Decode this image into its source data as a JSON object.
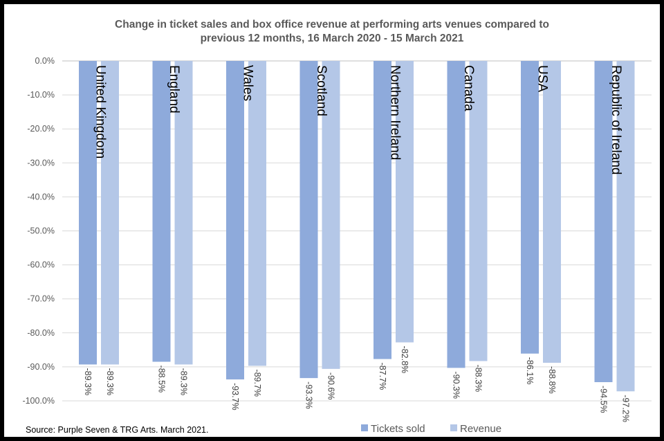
{
  "chart_data": {
    "type": "bar",
    "title": "Change in ticket sales and box office revenue at performing arts venues compared to previous 12 months, 16 March 2020 - 15 March 2021",
    "title_lines": [
      "Change in ticket sales and box office revenue at performing arts venues compared to",
      "previous 12 months, 16 March 2020 - 15 March 2021"
    ],
    "categories": [
      "United Kingdom",
      "England",
      "Wales",
      "Scotland",
      "Northern Ireland",
      "Canada",
      "USA",
      "Republic of Ireland"
    ],
    "series": [
      {
        "name": "Tickets sold",
        "color": "#8eaadb",
        "values": [
          -89.3,
          -88.5,
          -93.7,
          -93.3,
          -87.7,
          -90.3,
          -86.1,
          -94.5
        ]
      },
      {
        "name": "Revenue",
        "color": "#b4c7e7",
        "values": [
          -89.3,
          -89.3,
          -89.7,
          -90.6,
          -82.8,
          -88.3,
          -88.8,
          -97.2
        ]
      }
    ],
    "ylim": [
      -100,
      0
    ],
    "yticks": [
      0,
      -10,
      -20,
      -30,
      -40,
      -50,
      -60,
      -70,
      -80,
      -90,
      -100
    ],
    "ytick_labels": [
      "0.0%",
      "-10.0%",
      "-20.0%",
      "-30.0%",
      "-40.0%",
      "-50.0%",
      "-60.0%",
      "-70.0%",
      "-80.0%",
      "-90.0%",
      "-100.0%"
    ],
    "data_labels": [
      [
        "-89.3%",
        "-88.5%",
        "-93.7%",
        "-93.3%",
        "-87.7%",
        "-90.3%",
        "-86.1%",
        "-94.5%"
      ],
      [
        "-89.3%",
        "-89.3%",
        "-89.7%",
        "-90.6%",
        "-82.8%",
        "-88.3%",
        "-88.8%",
        "-97.2%"
      ]
    ],
    "grid": true,
    "legend": "bottom",
    "source": "Source: Purple Seven & TRG Arts. March 2021."
  }
}
